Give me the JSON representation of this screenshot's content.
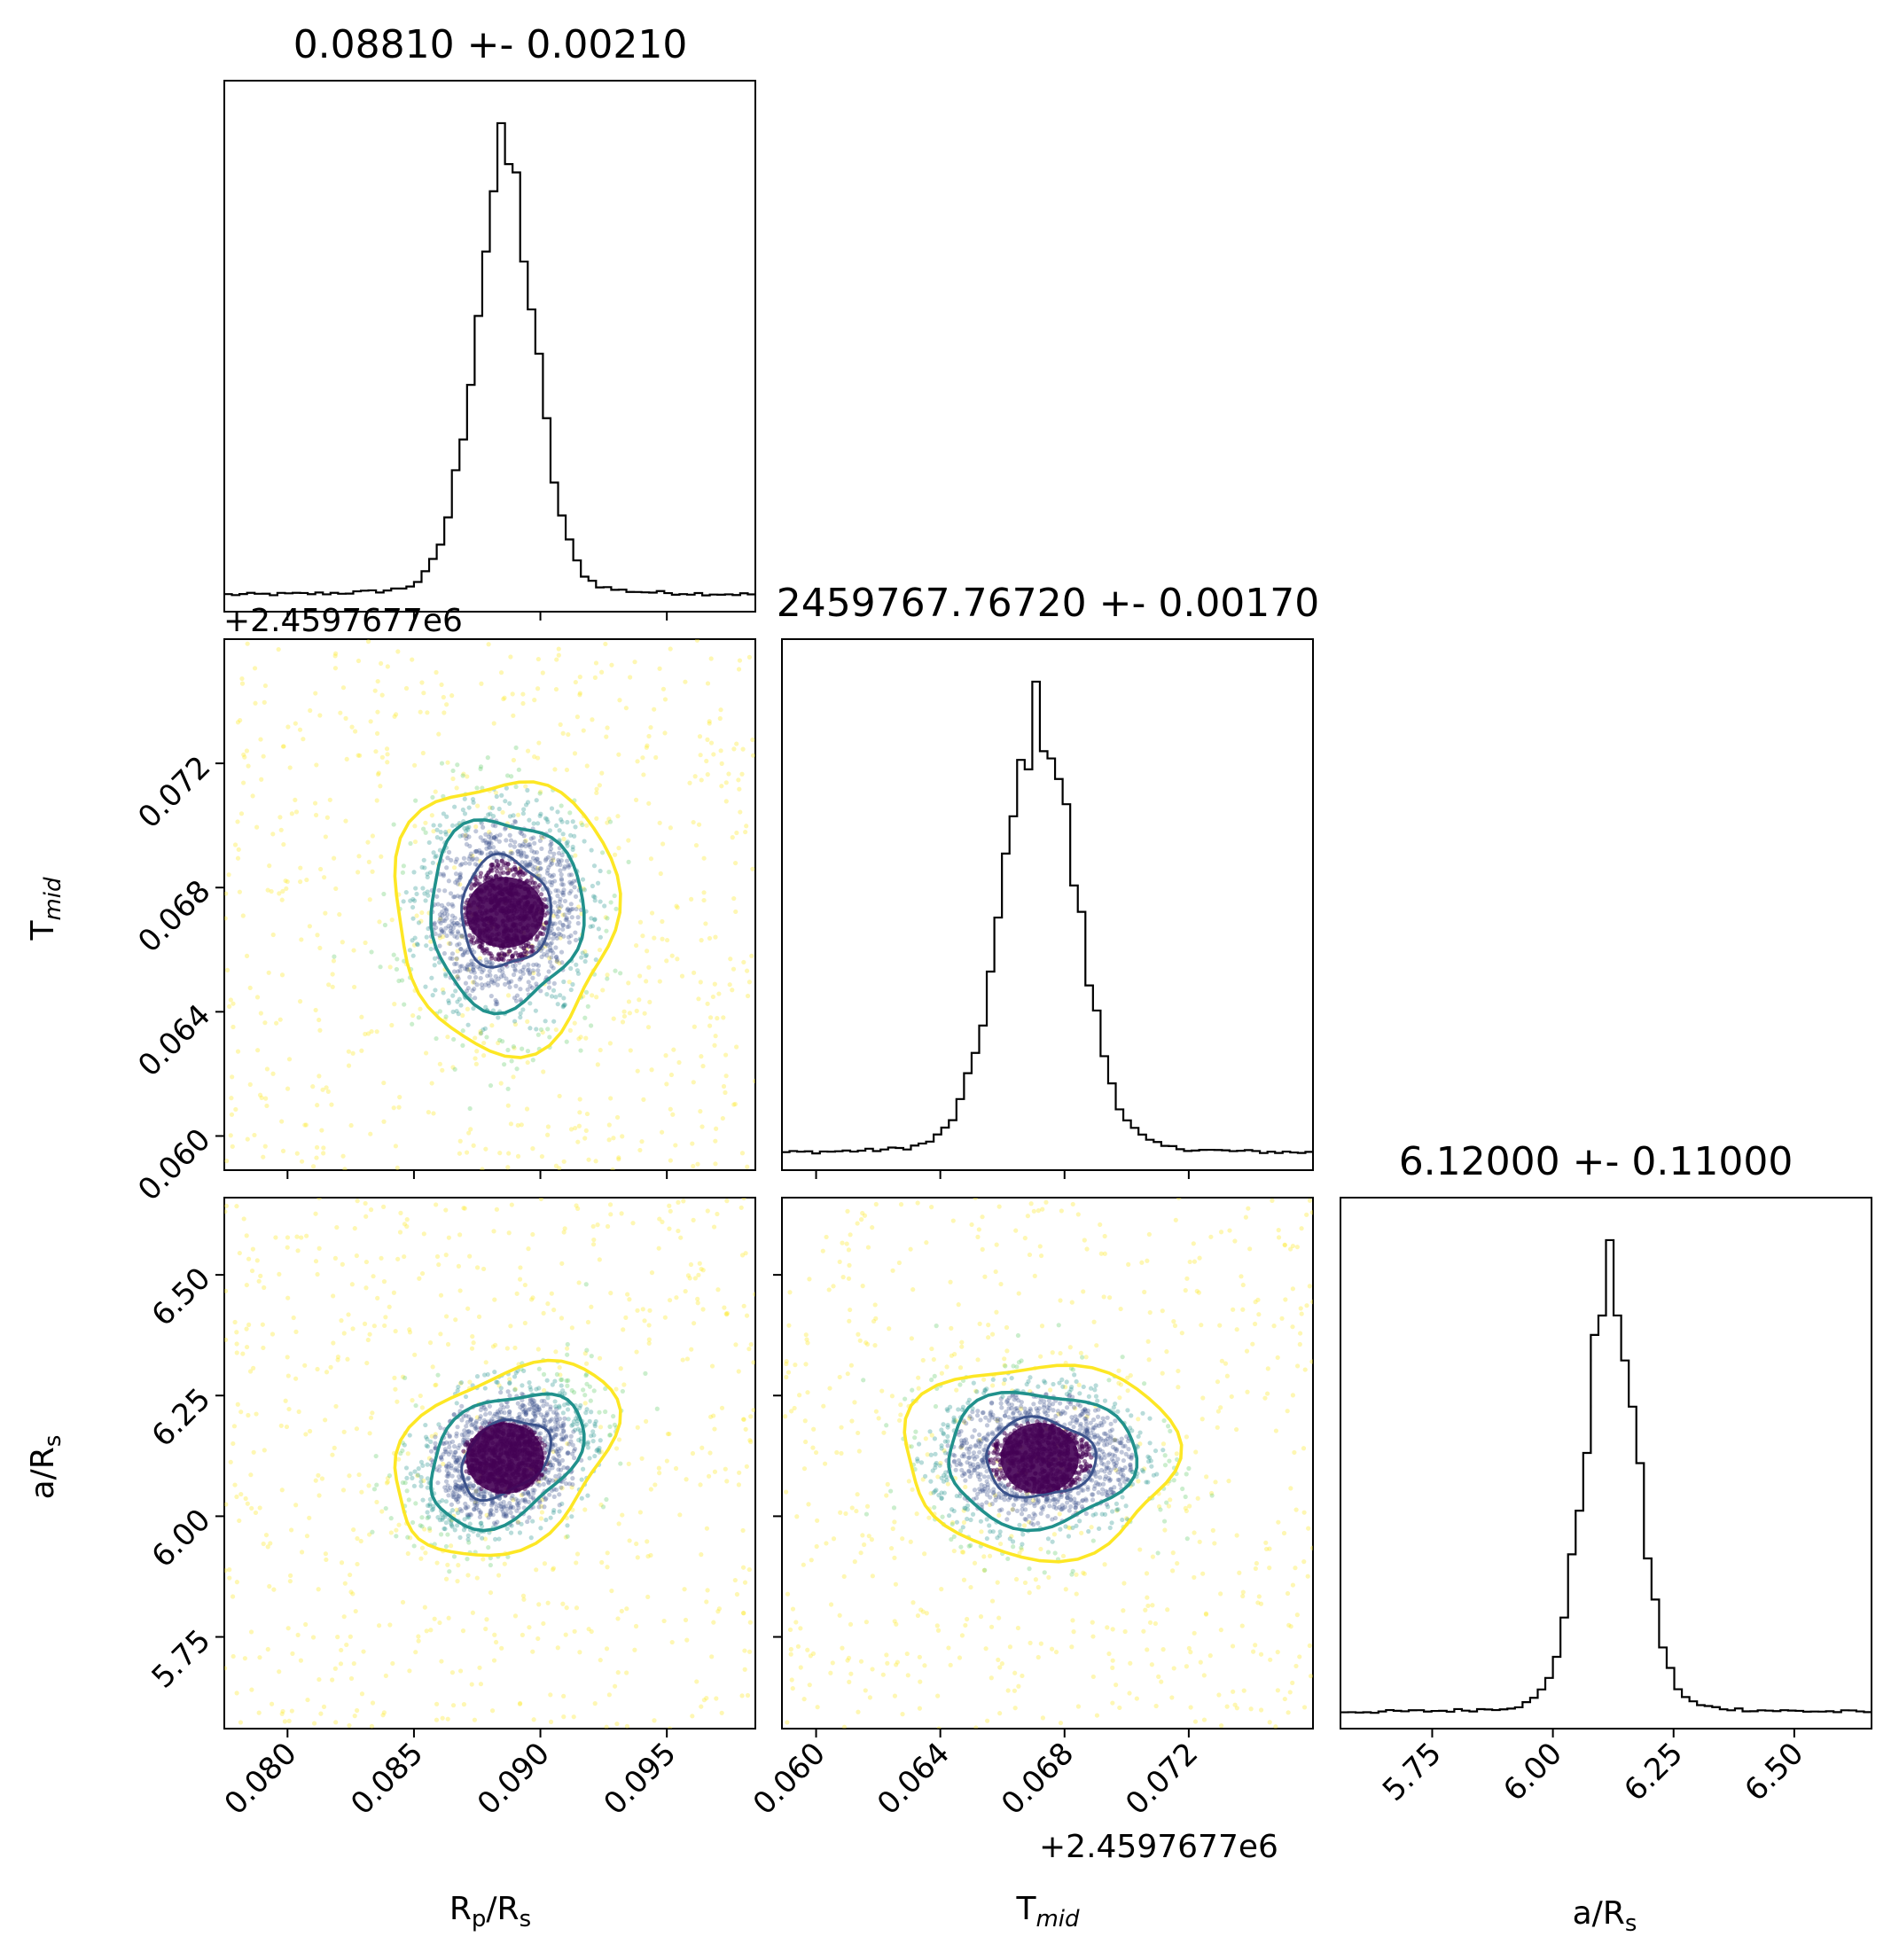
{
  "figure": {
    "titles": {
      "rp": "0.08810 +- 0.00210",
      "tmid": "2459767.76720 +- 0.00170",
      "ars": "6.12000 +- 0.11000"
    },
    "offset_labels": {
      "tmid_y": "+2.4597677e6",
      "tmid_x": "+2.4597677e6"
    },
    "axis_labels": {
      "x_rp_main": "R",
      "x_rp_sub": "p",
      "x_rp_rest": "/R",
      "x_rp_sub2": "s",
      "x_tmid_main": "T",
      "x_tmid_sub": "mid",
      "x_ars_main": "a/R",
      "x_ars_sub": "s",
      "y_tmid_main": "T",
      "y_tmid_sub": "mid",
      "y_ars_main": "a/R",
      "y_ars_sub": "s"
    }
  },
  "chart_data": {
    "type": "corner",
    "parameters": [
      "Rp/Rs",
      "Tmid",
      "a/Rs"
    ],
    "ranges": {
      "rp": [
        0.0775,
        0.0985
      ],
      "tmid": [
        0.0589,
        0.076
      ],
      "ars": [
        5.56,
        6.66
      ]
    },
    "ticks": {
      "rp": [
        "0.080",
        "0.085",
        "0.090",
        "0.095"
      ],
      "tmid": [
        "0.060",
        "0.064",
        "0.068",
        "0.072"
      ],
      "ars": [
        "5.75",
        "6.00",
        "6.25",
        "6.50"
      ]
    },
    "tick_values": {
      "rp": [
        0.08,
        0.085,
        0.09,
        0.095
      ],
      "tmid": [
        0.06,
        0.064,
        0.068,
        0.072
      ],
      "ars": [
        5.75,
        6.0,
        6.25,
        6.5
      ]
    },
    "estimates": {
      "rp": {
        "value": 0.0881,
        "err": 0.0021
      },
      "tmid": {
        "value": 2459767.7672,
        "err": 0.0017
      },
      "ars": {
        "value": 6.12,
        "err": 0.11
      }
    },
    "centers": {
      "rp": 0.0886,
      "tmid": 0.0672,
      "ars": 6.12
    },
    "peak_widths": {
      "rp": 0.0012,
      "tmid": 0.0012,
      "ars": 0.055
    },
    "contour_colors": [
      "#fde725",
      "#21918c",
      "#3b528b",
      "#440154"
    ],
    "histogram_color": "#000000",
    "grid": false,
    "legend": "none"
  }
}
